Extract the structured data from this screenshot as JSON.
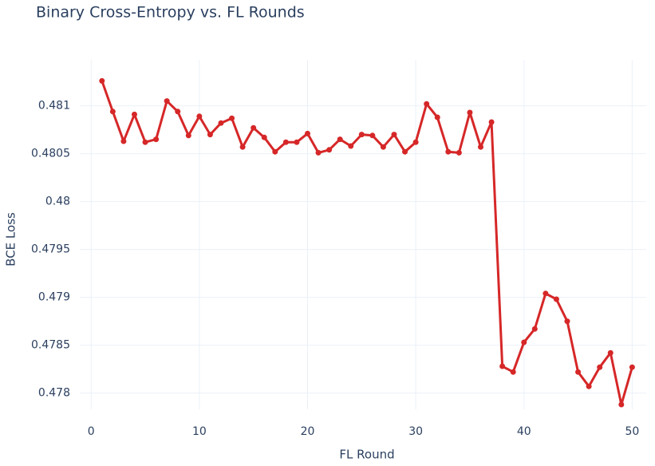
{
  "chart_data": {
    "type": "line",
    "title": "Binary Cross-Entropy vs. FL Rounds",
    "x_label": "FL Round",
    "y_label": "BCE Loss",
    "x": [
      1,
      2,
      3,
      4,
      5,
      6,
      7,
      8,
      9,
      10,
      11,
      12,
      13,
      14,
      15,
      16,
      17,
      18,
      19,
      20,
      21,
      22,
      23,
      24,
      25,
      26,
      27,
      28,
      29,
      30,
      31,
      32,
      33,
      34,
      35,
      36,
      37,
      38,
      39,
      40,
      41,
      42,
      43,
      44,
      45,
      46,
      47,
      48,
      49,
      50
    ],
    "series": [
      {
        "name": "BCE Loss",
        "color": "#d62728",
        "values": [
          0.48126,
          0.48094,
          0.48063,
          0.48091,
          0.48062,
          0.48065,
          0.48105,
          0.48094,
          0.48069,
          0.48089,
          0.4807,
          0.48082,
          0.48087,
          0.48057,
          0.48077,
          0.48067,
          0.48052,
          0.48062,
          0.48062,
          0.48071,
          0.48051,
          0.48054,
          0.48065,
          0.48058,
          0.4807,
          0.48069,
          0.48057,
          0.4807,
          0.48052,
          0.48062,
          0.48102,
          0.48088,
          0.48052,
          0.48051,
          0.48093,
          0.48057,
          0.48083,
          0.47828,
          0.47822,
          0.47853,
          0.47867,
          0.47904,
          0.47898,
          0.47875,
          0.47822,
          0.47807,
          0.47827,
          0.47842,
          0.47788,
          0.47827
        ]
      }
    ],
    "xlim": [
      -1.05,
      51.3
    ],
    "xticks": [
      0,
      10,
      20,
      30,
      40,
      50
    ],
    "ylim": [
      0.47783,
      0.48148
    ],
    "yticks": [
      0.478,
      0.4785,
      0.479,
      0.4795,
      0.48,
      0.4805,
      0.481
    ],
    "grid": true
  }
}
